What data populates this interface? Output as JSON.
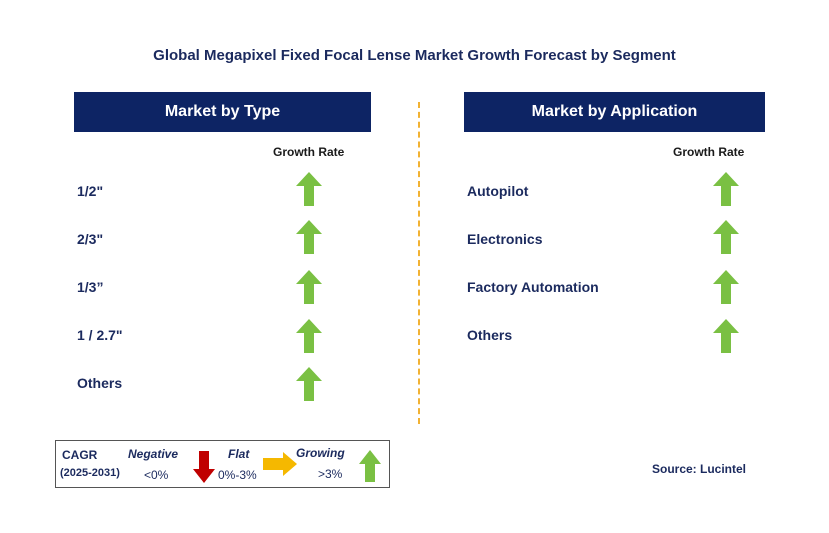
{
  "title": "Global Megapixel Fixed Focal Lense Market Growth Forecast by Segment",
  "left_panel": {
    "header": "Market by Type",
    "growth_rate_label": "Growth Rate",
    "rows": [
      {
        "label": "1/2\"",
        "trend": "growing"
      },
      {
        "label": "2/3\"",
        "trend": "growing"
      },
      {
        "label": "1/3”",
        "trend": "growing"
      },
      {
        "label": "1 / 2.7\"",
        "trend": "growing"
      },
      {
        "label": "Others",
        "trend": "growing"
      }
    ]
  },
  "right_panel": {
    "header": "Market by Application",
    "growth_rate_label": "Growth Rate",
    "rows": [
      {
        "label": "Autopilot",
        "trend": "growing"
      },
      {
        "label": "Electronics",
        "trend": "growing"
      },
      {
        "label": "Factory Automation",
        "trend": "growing"
      },
      {
        "label": "Others",
        "trend": "growing"
      }
    ]
  },
  "legend": {
    "cagr": "CAGR",
    "period": "(2025-2031)",
    "negative": "Negative",
    "negative_range": "<0%",
    "flat": "Flat",
    "flat_range": "0%-3%",
    "growing": "Growing",
    "growing_range": ">3%"
  },
  "source": "Source: Lucintel",
  "colors": {
    "header_bg": "#0d2464",
    "growing": "#7ac043",
    "negative": "#c00000",
    "flat": "#f5b800",
    "divider": "#f2b233"
  },
  "icons": {
    "growing": "green-up-arrow-icon",
    "negative": "red-down-arrow-icon",
    "flat": "yellow-right-arrow-icon"
  }
}
